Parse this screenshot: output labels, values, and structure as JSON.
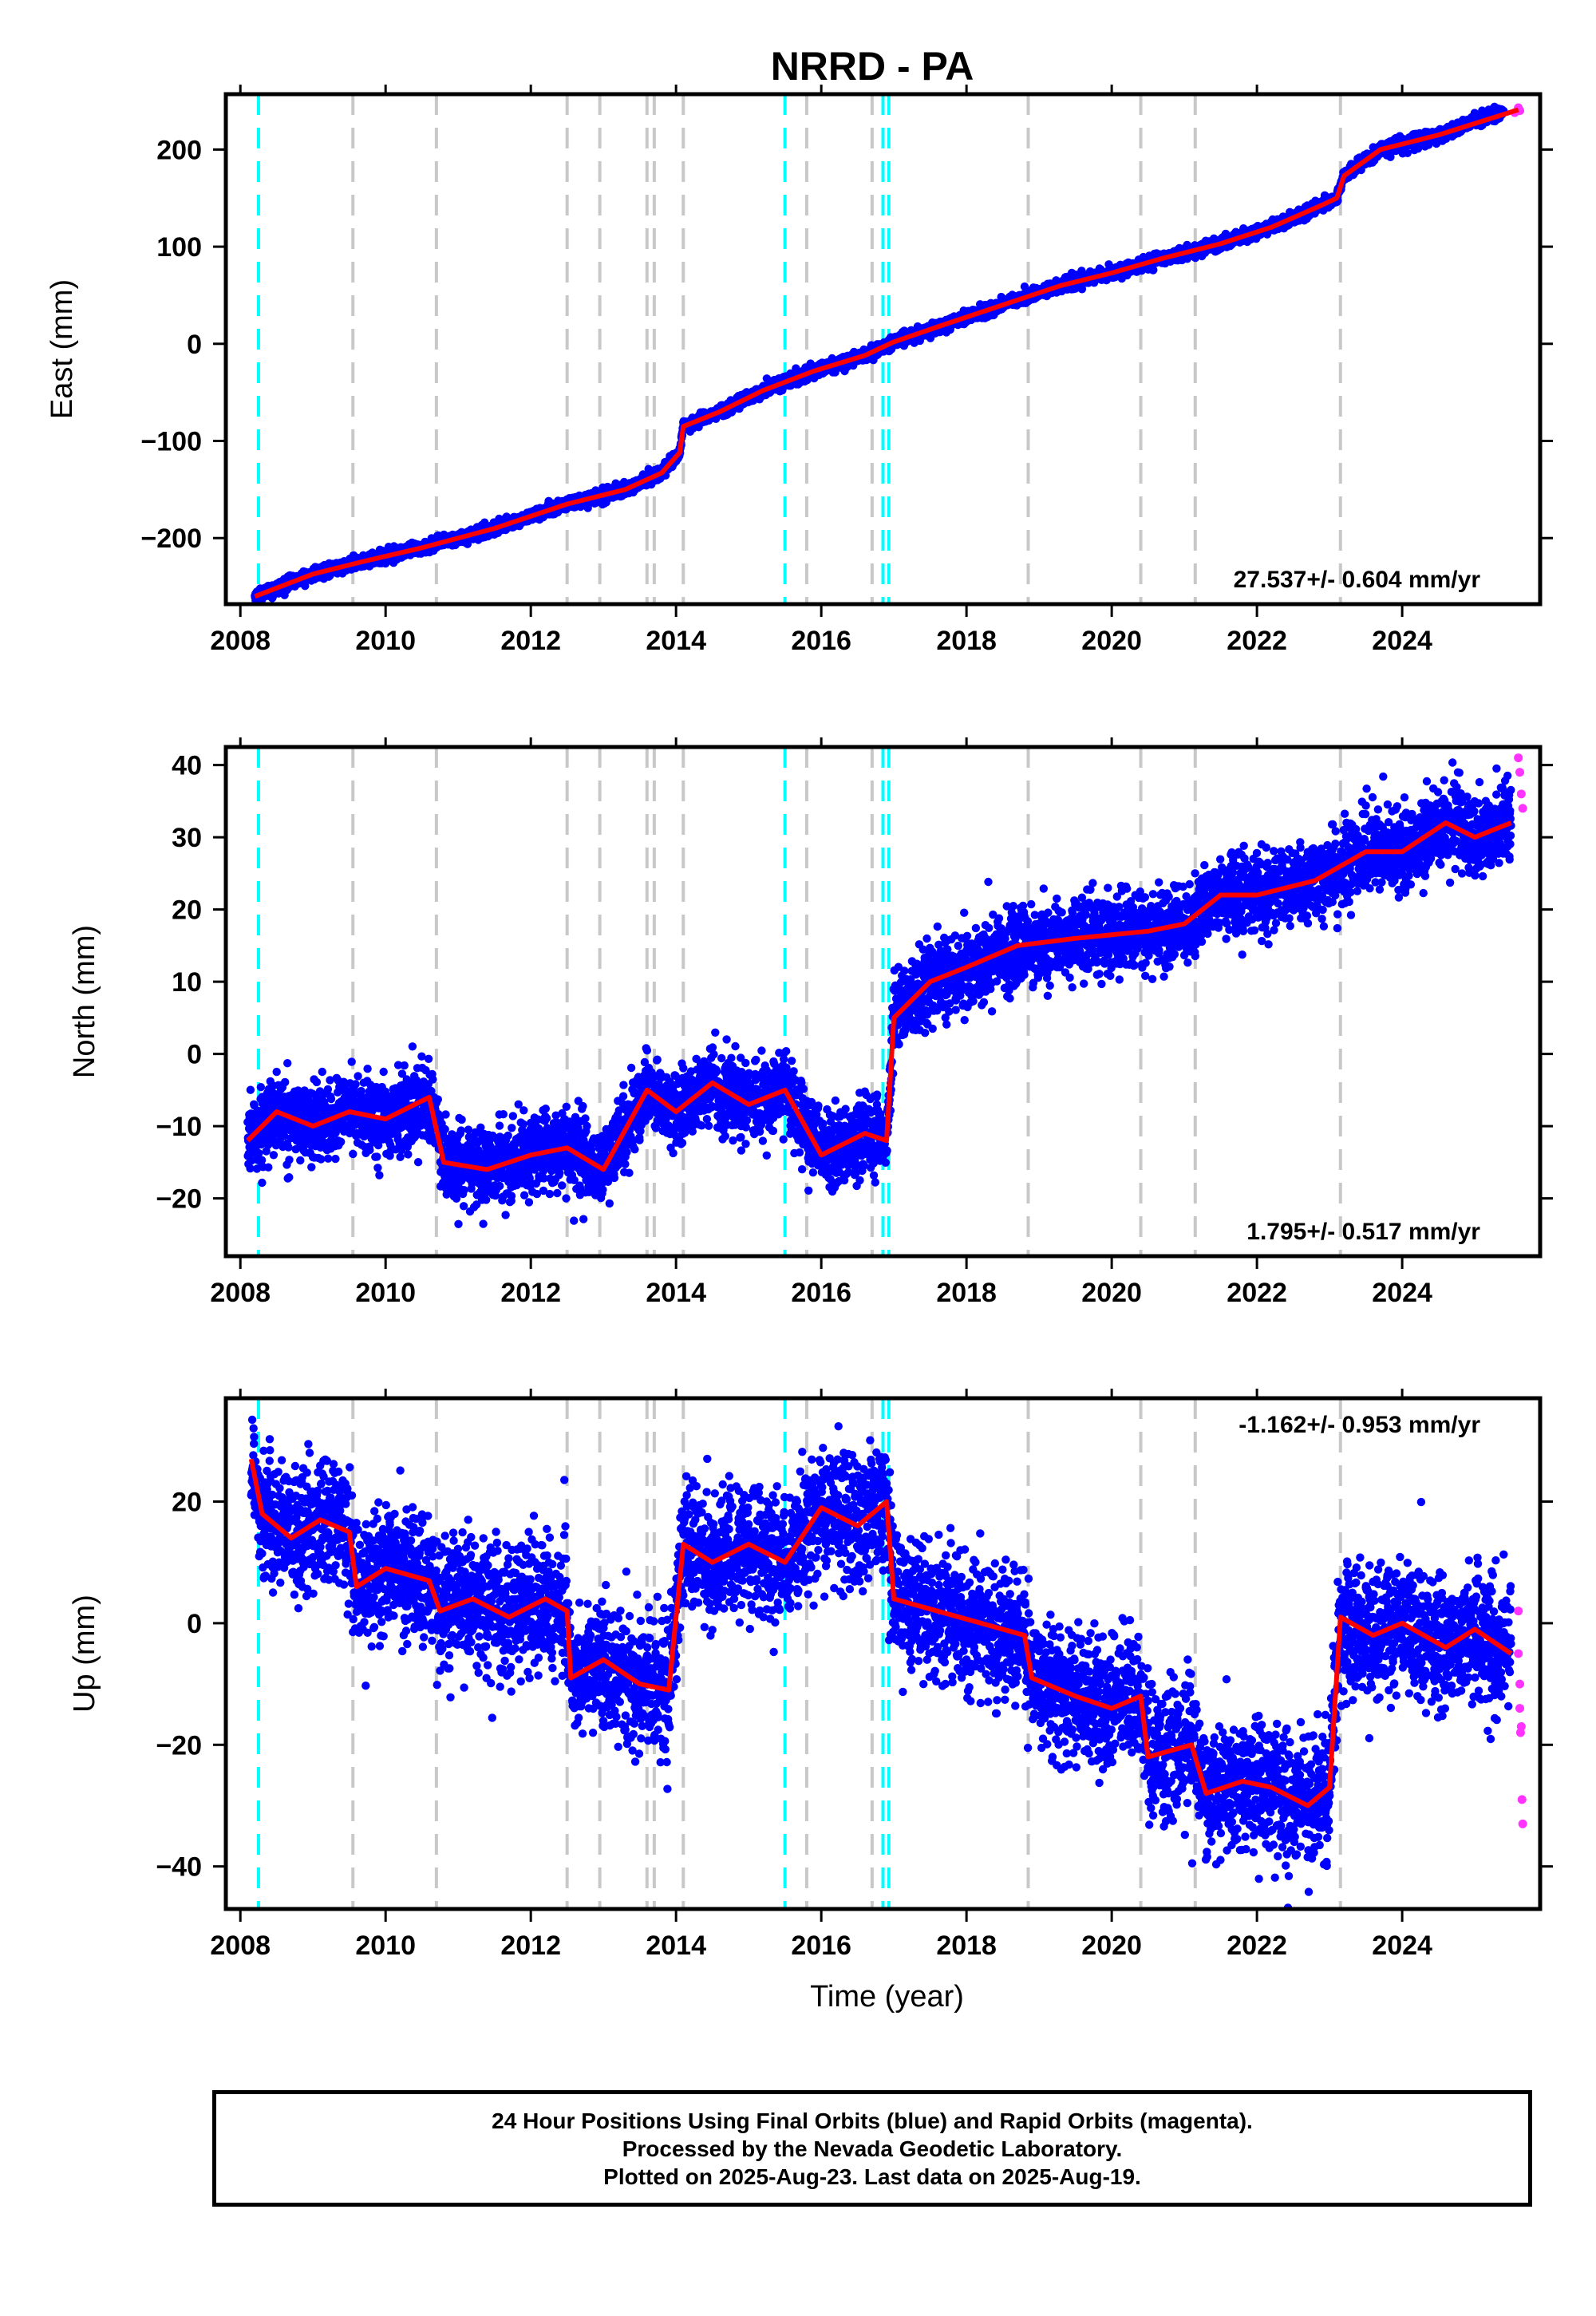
{
  "title": "NRRD - PA",
  "caption": [
    "24 Hour Positions Using Final Orbits (blue) and Rapid Orbits (magenta).",
    "Processed by the Nevada Geodetic Laboratory.",
    "Plotted on 2025-Aug-23. Last data on 2025-Aug-19."
  ],
  "colors": {
    "final": "#0000ff",
    "rapid": "#ff33ff",
    "model": "#ff0000",
    "equipment_change": "#c8c8c8",
    "earthquake": "#00ffff"
  },
  "chart_data": [
    {
      "type": "scatter",
      "ylabel": "East (mm)",
      "xlabel": "",
      "rate_label": "27.537+/- 0.604 mm/yr",
      "rate_position": "bottom-right",
      "xlim": [
        2007.8,
        2025.9
      ],
      "ylim": [
        -268,
        257
      ],
      "xticks": [
        2008,
        2010,
        2012,
        2014,
        2016,
        2018,
        2020,
        2022,
        2024
      ],
      "yticks": [
        -200,
        -100,
        0,
        100,
        200
      ],
      "series": [
        {
          "name": "Final Orbits (blue)",
          "x": [
            2008.2,
            2009.0,
            2009.7,
            2010.5,
            2011.5,
            2012.5,
            2013.3,
            2013.8,
            2014.05,
            2014.1,
            2014.6,
            2015.2,
            2015.9,
            2016.6,
            2017.0,
            2017.7,
            2018.5,
            2019.3,
            2020.0,
            2020.7,
            2021.5,
            2022.2,
            2022.9,
            2023.1,
            2023.2,
            2023.7,
            2024.5,
            2025.4
          ],
          "y": [
            -260,
            -237,
            -224,
            -210,
            -190,
            -165,
            -150,
            -133,
            -112,
            -85,
            -70,
            -48,
            -28,
            -12,
            2,
            20,
            40,
            60,
            73,
            88,
            103,
            120,
            143,
            150,
            173,
            200,
            215,
            240
          ]
        },
        {
          "name": "Rapid Orbits (magenta)",
          "x": [
            2025.55,
            2025.6,
            2025.62
          ],
          "y": [
            238,
            243,
            240
          ]
        },
        {
          "name": "Model",
          "x": [
            2008.2,
            2009.0,
            2009.7,
            2010.5,
            2011.5,
            2012.5,
            2013.3,
            2013.8,
            2014.05,
            2014.1,
            2014.6,
            2015.2,
            2015.9,
            2016.6,
            2017.0,
            2017.7,
            2018.5,
            2019.3,
            2020.0,
            2020.7,
            2021.5,
            2022.2,
            2022.9,
            2023.1,
            2023.2,
            2023.7,
            2024.5,
            2025.6
          ],
          "y": [
            -260,
            -237,
            -224,
            -210,
            -190,
            -165,
            -150,
            -133,
            -112,
            -85,
            -70,
            -48,
            -28,
            -12,
            2,
            20,
            40,
            60,
            73,
            88,
            103,
            120,
            143,
            150,
            173,
            200,
            215,
            241
          ]
        }
      ],
      "vlines_gray": [
        2009.55,
        2010.7,
        2012.5,
        2012.95,
        2013.6,
        2013.7,
        2014.1,
        2015.8,
        2016.7,
        2018.85,
        2020.4,
        2021.15,
        2023.15
      ],
      "vlines_cyan": [
        2008.25,
        2015.5,
        2016.85,
        2016.93
      ]
    },
    {
      "type": "scatter",
      "ylabel": "North (mm)",
      "xlabel": "",
      "rate_label": "1.795+/- 0.517 mm/yr",
      "rate_position": "bottom-right",
      "xlim": [
        2007.8,
        2025.9
      ],
      "ylim": [
        -28,
        42.5
      ],
      "xticks": [
        2008,
        2010,
        2012,
        2014,
        2016,
        2018,
        2020,
        2022,
        2024
      ],
      "yticks": [
        -20,
        -10,
        0,
        10,
        20,
        30,
        40
      ],
      "series": [
        {
          "name": "Final Orbits (blue)",
          "x": [
            2008.1,
            2008.5,
            2009.0,
            2009.5,
            2010.0,
            2010.6,
            2010.8,
            2011.4,
            2012.0,
            2012.5,
            2013.0,
            2013.6,
            2014.0,
            2014.5,
            2015.0,
            2015.5,
            2016.0,
            2016.6,
            2016.9,
            2017.0,
            2017.5,
            2018.0,
            2018.7,
            2019.5,
            2020.5,
            2021.0,
            2021.5,
            2022.0,
            2022.8,
            2023.5,
            2024.0,
            2024.6,
            2025.0,
            2025.5
          ],
          "y": [
            -12,
            -8,
            -10,
            -8,
            -9,
            -6,
            -15,
            -16,
            -14,
            -13,
            -16,
            -5,
            -8,
            -4,
            -7,
            -5,
            -14,
            -11,
            -12,
            5,
            10,
            12,
            15,
            16,
            17,
            18,
            22,
            22,
            24,
            28,
            28,
            32,
            30,
            32
          ]
        },
        {
          "name": "Rapid Orbits (magenta)",
          "x": [
            2025.6,
            2025.62,
            2025.64,
            2025.66
          ],
          "y": [
            41,
            39,
            36,
            34
          ]
        },
        {
          "name": "Model",
          "x": [
            2008.1,
            2008.5,
            2009.0,
            2009.5,
            2010.0,
            2010.6,
            2010.8,
            2011.4,
            2012.0,
            2012.5,
            2013.0,
            2013.6,
            2014.0,
            2014.5,
            2015.0,
            2015.5,
            2016.0,
            2016.6,
            2016.9,
            2017.0,
            2017.5,
            2018.0,
            2018.7,
            2019.5,
            2020.5,
            2021.0,
            2021.5,
            2022.0,
            2022.8,
            2023.5,
            2024.0,
            2024.6,
            2025.0,
            2025.5
          ],
          "y": [
            -12,
            -8,
            -10,
            -8,
            -9,
            -6,
            -15,
            -16,
            -14,
            -13,
            -16,
            -5,
            -8,
            -4,
            -7,
            -5,
            -14,
            -11,
            -12,
            5,
            10,
            12,
            15,
            16,
            17,
            18,
            22,
            22,
            24,
            28,
            28,
            32,
            30,
            32
          ]
        }
      ],
      "vlines_gray": [
        2009.55,
        2010.7,
        2012.5,
        2012.95,
        2013.6,
        2013.7,
        2014.1,
        2015.8,
        2016.7,
        2018.85,
        2020.4,
        2021.15,
        2023.15
      ],
      "vlines_cyan": [
        2008.25,
        2015.5,
        2016.85,
        2016.93
      ]
    },
    {
      "type": "scatter",
      "ylabel": "Up (mm)",
      "xlabel": "Time (year)",
      "rate_label": "-1.162+/- 0.953 mm/yr",
      "rate_position": "top-right",
      "xlim": [
        2007.8,
        2025.9
      ],
      "ylim": [
        -47,
        37
      ],
      "xticks": [
        2008,
        2010,
        2012,
        2014,
        2016,
        2018,
        2020,
        2022,
        2024
      ],
      "yticks": [
        -40,
        -20,
        0,
        20
      ],
      "series": [
        {
          "name": "Final Orbits (blue)",
          "x": [
            2008.15,
            2008.3,
            2008.7,
            2009.1,
            2009.5,
            2009.6,
            2010.0,
            2010.6,
            2010.75,
            2011.2,
            2011.7,
            2012.2,
            2012.5,
            2012.55,
            2013.0,
            2013.5,
            2013.9,
            2014.1,
            2014.5,
            2015.0,
            2015.5,
            2016.0,
            2016.5,
            2016.9,
            2017.0,
            2017.6,
            2018.2,
            2018.8,
            2018.9,
            2019.5,
            2020.0,
            2020.4,
            2020.5,
            2021.1,
            2021.3,
            2021.8,
            2022.2,
            2022.7,
            2023.0,
            2023.15,
            2023.6,
            2024.0,
            2024.6,
            2025.0,
            2025.5
          ],
          "y": [
            27,
            18,
            14,
            17,
            15,
            6,
            9,
            7,
            2,
            4,
            1,
            4,
            2,
            -9,
            -6,
            -10,
            -11,
            13,
            10,
            13,
            10,
            19,
            16,
            20,
            4,
            2,
            0,
            -2,
            -9,
            -12,
            -14,
            -12,
            -22,
            -20,
            -28,
            -26,
            -27,
            -30,
            -27,
            1,
            -2,
            0,
            -4,
            -1,
            -5
          ]
        },
        {
          "name": "Rapid Orbits (magenta)",
          "x": [
            2025.6,
            2025.6,
            2025.62,
            2025.62,
            2025.63,
            2025.64,
            2025.65,
            2025.66
          ],
          "y": [
            2,
            -5,
            -10,
            -14,
            -18,
            -17,
            -29,
            -33
          ]
        },
        {
          "name": "Model",
          "x": [
            2008.15,
            2008.3,
            2008.7,
            2009.1,
            2009.5,
            2009.6,
            2010.0,
            2010.6,
            2010.75,
            2011.2,
            2011.7,
            2012.2,
            2012.5,
            2012.55,
            2013.0,
            2013.5,
            2013.9,
            2014.1,
            2014.5,
            2015.0,
            2015.5,
            2016.0,
            2016.5,
            2016.9,
            2017.0,
            2017.6,
            2018.2,
            2018.8,
            2018.9,
            2019.5,
            2020.0,
            2020.4,
            2020.5,
            2021.1,
            2021.3,
            2021.8,
            2022.2,
            2022.7,
            2023.0,
            2023.15,
            2023.6,
            2024.0,
            2024.6,
            2025.0,
            2025.5
          ],
          "y": [
            27,
            18,
            14,
            17,
            15,
            6,
            9,
            7,
            2,
            4,
            1,
            4,
            2,
            -9,
            -6,
            -10,
            -11,
            13,
            10,
            13,
            10,
            19,
            16,
            20,
            4,
            2,
            0,
            -2,
            -9,
            -12,
            -14,
            -12,
            -22,
            -20,
            -28,
            -26,
            -27,
            -30,
            -27,
            1,
            -2,
            0,
            -4,
            -1,
            -5
          ]
        }
      ],
      "vlines_gray": [
        2009.55,
        2010.7,
        2012.5,
        2012.95,
        2013.6,
        2013.7,
        2014.1,
        2015.8,
        2016.7,
        2018.85,
        2020.4,
        2021.15,
        2023.15
      ],
      "vlines_cyan": [
        2008.25,
        2015.5,
        2016.85,
        2016.93
      ]
    }
  ]
}
